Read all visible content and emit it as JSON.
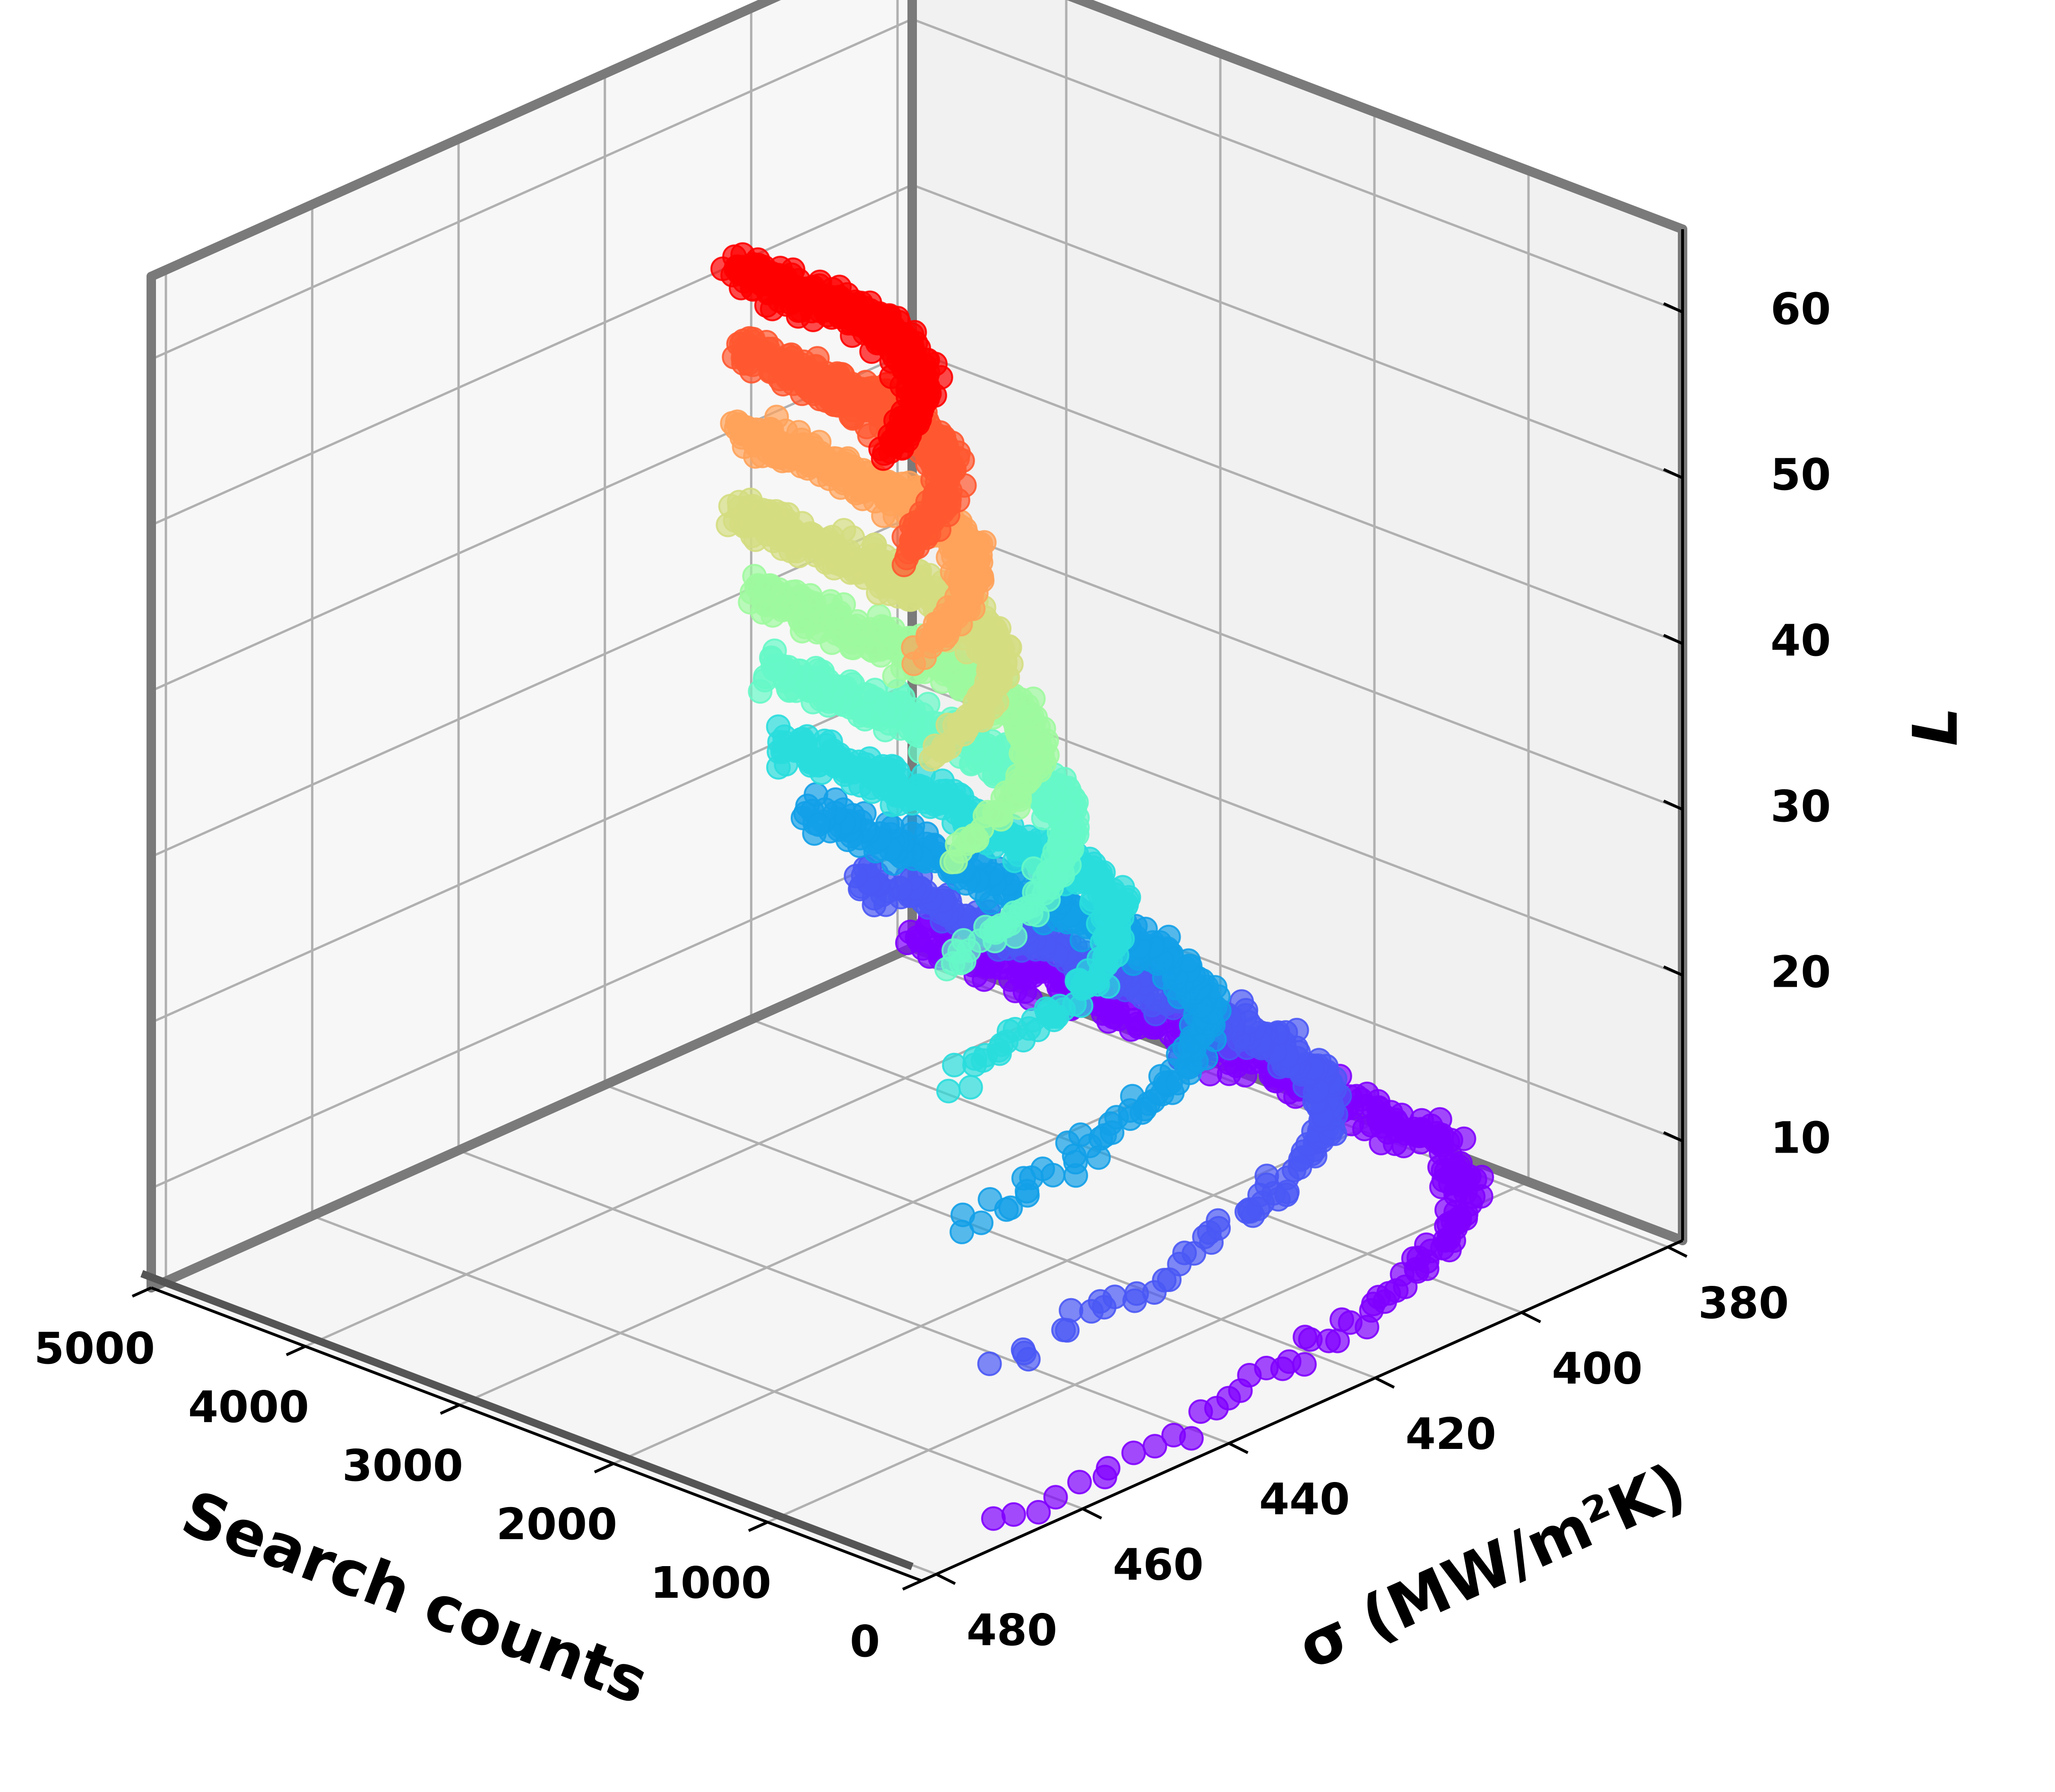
{
  "chart_data": {
    "type": "scatter",
    "dimensions": "3d",
    "xlabel": "Search counts",
    "ylabel": "σ (MW/m²K)",
    "zlabel": "L",
    "x_ticks": [
      "0",
      "1000",
      "2000",
      "3000",
      "4000",
      "5000"
    ],
    "y_ticks": [
      "380",
      "400",
      "420",
      "440",
      "460",
      "480"
    ],
    "z_ticks": [
      "10",
      "20",
      "30",
      "40",
      "50",
      "60"
    ],
    "xlim": [
      0,
      5000
    ],
    "ylim": [
      378,
      482
    ],
    "zlim": [
      4,
      65
    ],
    "grid": true,
    "colormap": "rainbow",
    "series": [
      {
        "L": 5,
        "color": "#8000ff",
        "sigma_start": 378,
        "sigma_min": 472,
        "search_at_min": 0
      },
      {
        "L": 10,
        "color": "#4a58f5",
        "sigma_start": 386,
        "sigma_min": 460,
        "search_at_min": 600
      },
      {
        "L": 15,
        "color": "#12a0e8",
        "sigma_start": 392,
        "sigma_min": 452,
        "search_at_min": 1200
      },
      {
        "L": 20,
        "color": "#2adddd",
        "sigma_start": 396,
        "sigma_min": 442,
        "search_at_min": 1700
      },
      {
        "L": 25,
        "color": "#66f8c8",
        "sigma_start": 398,
        "sigma_min": 436,
        "search_at_min": 2000
      },
      {
        "L": 30,
        "color": "#9efa9e",
        "sigma_start": 400,
        "sigma_min": 432,
        "search_at_min": 2200
      },
      {
        "L": 35,
        "color": "#d4dd80",
        "sigma_start": 402,
        "sigma_min": 430,
        "search_at_min": 2400
      },
      {
        "L": 40,
        "color": "#ffa25a",
        "sigma_start": 402,
        "sigma_min": 428,
        "search_at_min": 2600
      },
      {
        "L": 45,
        "color": "#ff5830",
        "sigma_start": 402,
        "sigma_min": 426,
        "search_at_min": 2800
      },
      {
        "L": 50,
        "color": "#ff0000",
        "sigma_start": 402,
        "sigma_min": 424,
        "search_at_min": 3000
      }
    ]
  }
}
